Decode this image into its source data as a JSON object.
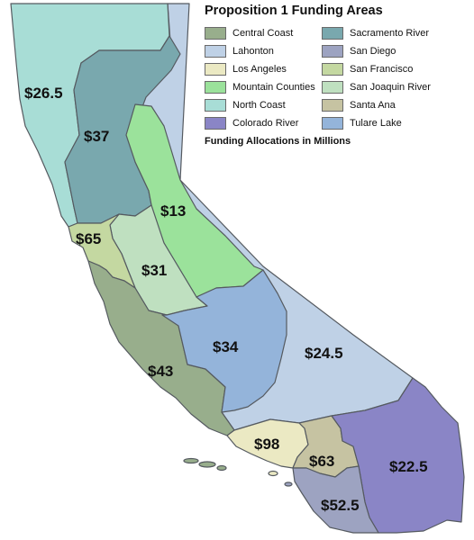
{
  "legend": {
    "title": "Proposition 1 Funding Areas",
    "note": "Funding Allocations in Millions",
    "items": [
      {
        "label": "Central Coast",
        "color": "#98ae8c"
      },
      {
        "label": "Colorado River",
        "color": "#8a85c6"
      },
      {
        "label": "Lahonton",
        "color": "#bfd1e6"
      },
      {
        "label": "Los Angeles",
        "color": "#ebe9c3"
      },
      {
        "label": "Mountain Counties",
        "color": "#9be29b"
      },
      {
        "label": "North Coast",
        "color": "#a8ddd6"
      },
      {
        "label": "Sacramento River",
        "color": "#79a8ae"
      },
      {
        "label": "San Diego",
        "color": "#9da3c1"
      },
      {
        "label": "San Francisco",
        "color": "#c4d8a1"
      },
      {
        "label": "San Joaquin River",
        "color": "#bfe0c0"
      },
      {
        "label": "Santa Ana",
        "color": "#c6c3a2"
      },
      {
        "label": "Tulare Lake",
        "color": "#94b4da"
      }
    ]
  },
  "regions": {
    "north_coast": {
      "name": "North Coast",
      "value": "$26.5"
    },
    "sacramento_river": {
      "name": "Sacramento River",
      "value": "$37"
    },
    "mountain_counties": {
      "name": "Mountain Counties",
      "value": "$13"
    },
    "san_francisco": {
      "name": "San Francisco",
      "value": "$65"
    },
    "san_joaquin_river": {
      "name": "San Joaquin River",
      "value": "$31"
    },
    "tulare_lake": {
      "name": "Tulare Lake",
      "value": "$34"
    },
    "lahonton": {
      "name": "Lahonton",
      "value": "$24.5"
    },
    "central_coast": {
      "name": "Central Coast",
      "value": "$43"
    },
    "los_angeles": {
      "name": "Los Angeles",
      "value": "$98"
    },
    "santa_ana": {
      "name": "Santa Ana",
      "value": "$63"
    },
    "colorado_river": {
      "name": "Colorado River",
      "value": "$22.5"
    },
    "san_diego": {
      "name": "San Diego",
      "value": "$52.5"
    }
  }
}
